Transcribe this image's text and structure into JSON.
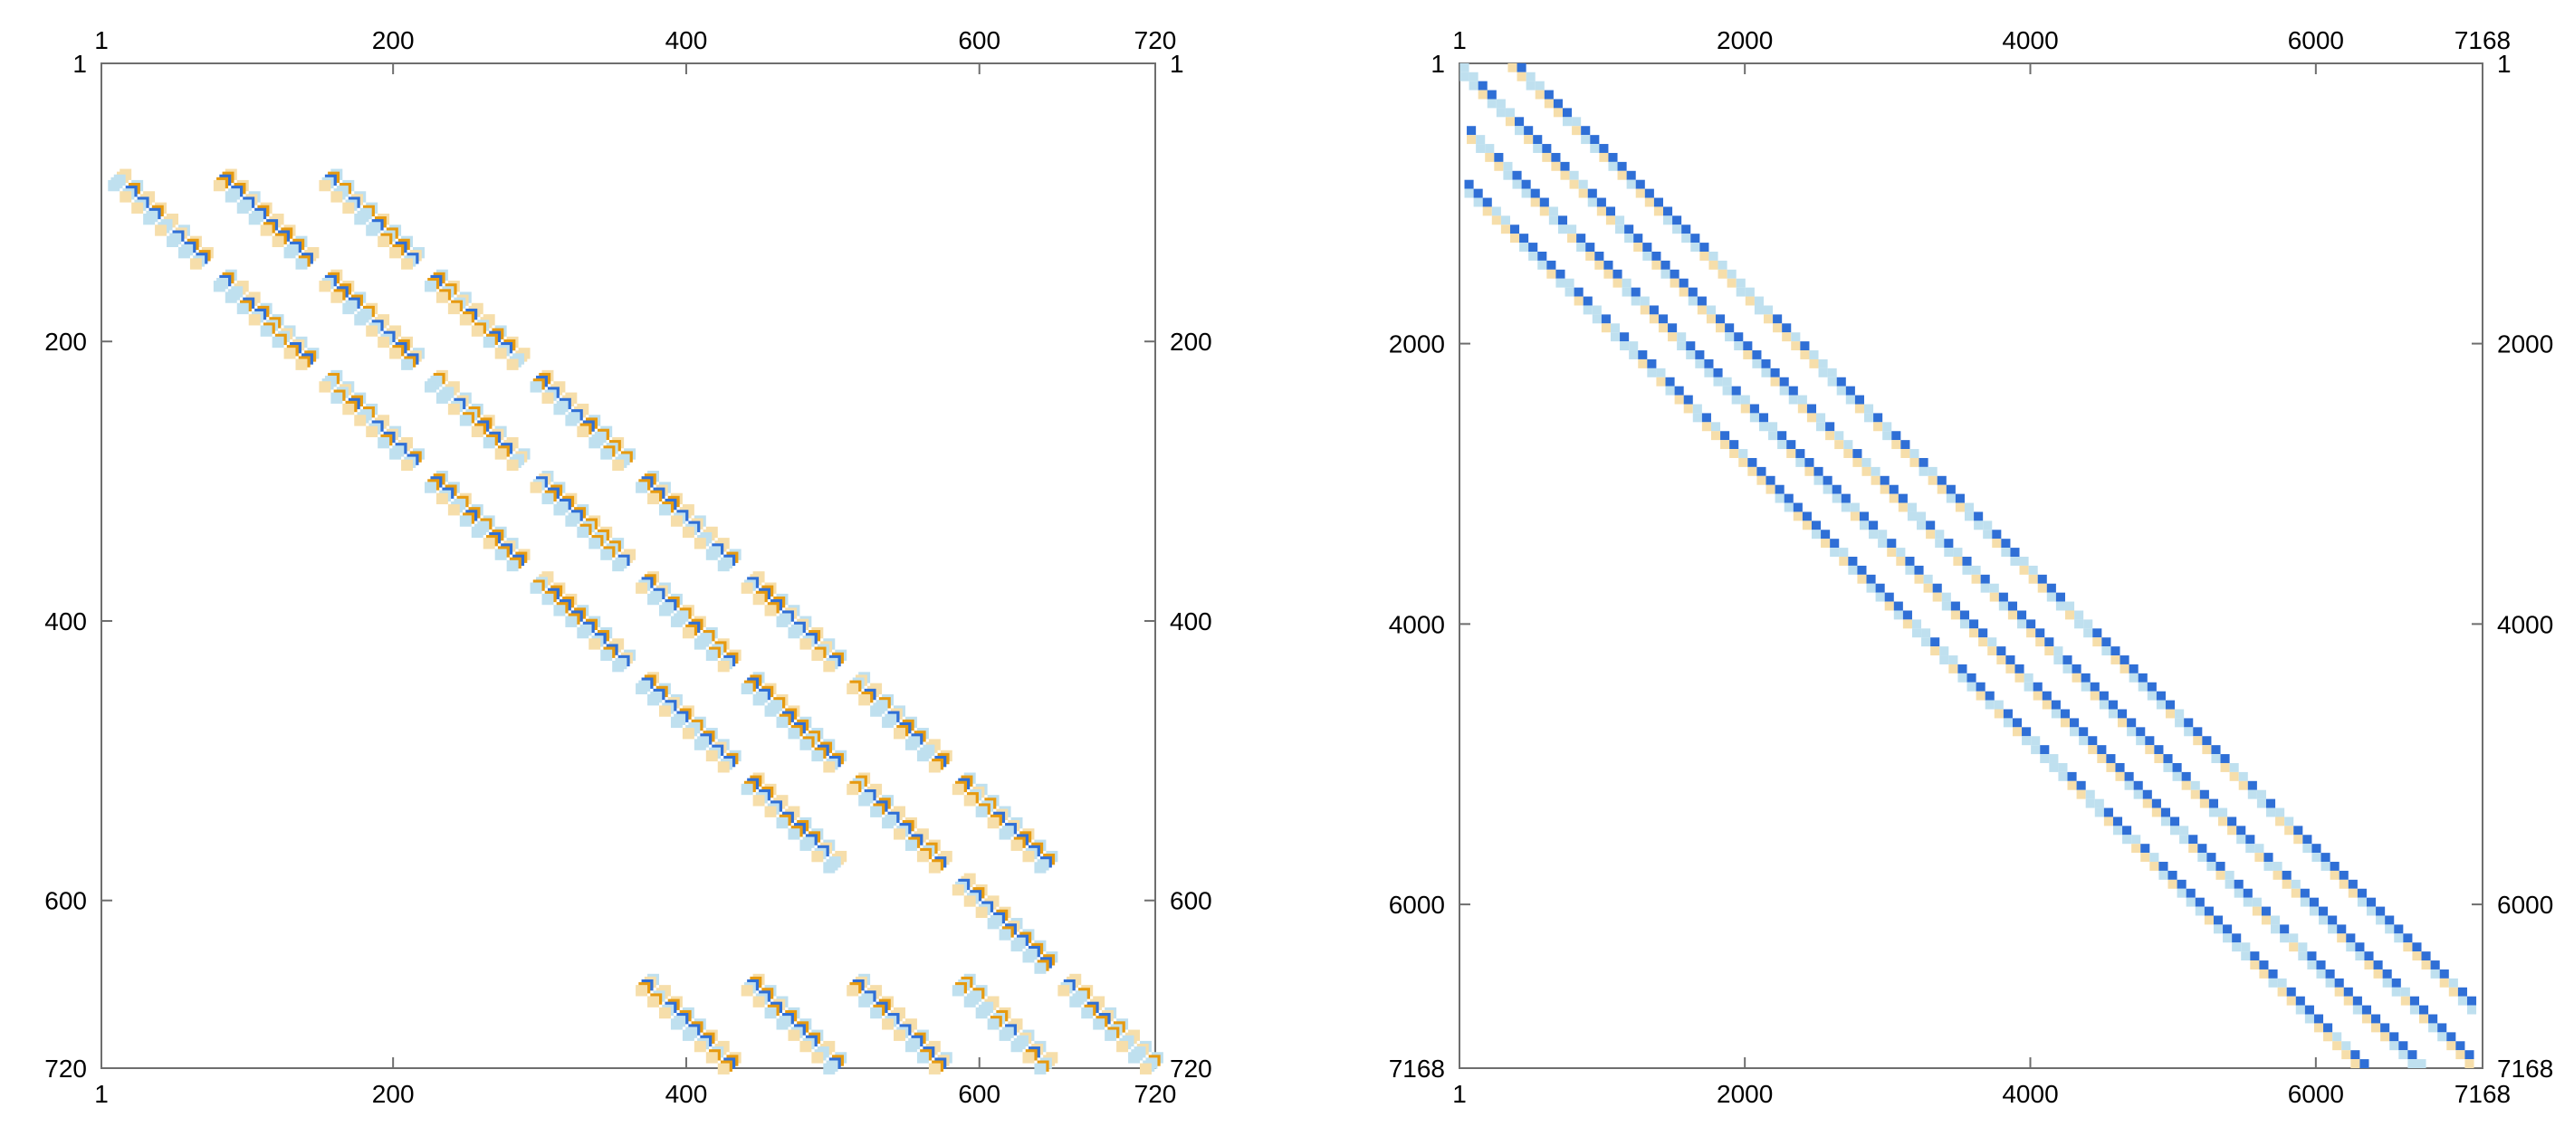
{
  "chart_data": [
    {
      "type": "heatmap",
      "title": "",
      "xlabel": "",
      "ylabel": "",
      "xlim": [
        1,
        720
      ],
      "ylim": [
        720,
        1
      ],
      "matrix_size": 720,
      "block_size": 72,
      "ticks": [
        1,
        200,
        400,
        600,
        720
      ],
      "tick_labels": [
        "1",
        "200",
        "400",
        "600",
        "720"
      ],
      "block_bands": [
        {
          "row_block": 1,
          "col_block": 0
        },
        {
          "row_block": 1,
          "col_block": 1
        },
        {
          "row_block": 1,
          "col_block": 2
        },
        {
          "row_block": 2,
          "col_block": 1
        },
        {
          "row_block": 2,
          "col_block": 2
        },
        {
          "row_block": 2,
          "col_block": 3
        },
        {
          "row_block": 3,
          "col_block": 2
        },
        {
          "row_block": 3,
          "col_block": 3
        },
        {
          "row_block": 3,
          "col_block": 4
        },
        {
          "row_block": 4,
          "col_block": 3
        },
        {
          "row_block": 4,
          "col_block": 4
        },
        {
          "row_block": 4,
          "col_block": 5
        },
        {
          "row_block": 5,
          "col_block": 4
        },
        {
          "row_block": 5,
          "col_block": 5
        },
        {
          "row_block": 5,
          "col_block": 6
        },
        {
          "row_block": 6,
          "col_block": 5
        },
        {
          "row_block": 6,
          "col_block": 6
        },
        {
          "row_block": 6,
          "col_block": 7
        },
        {
          "row_block": 7,
          "col_block": 6
        },
        {
          "row_block": 7,
          "col_block": 7
        },
        {
          "row_block": 7,
          "col_block": 8
        },
        {
          "row_block": 8,
          "col_block": 8
        },
        {
          "row_block": 9,
          "col_block": 5
        },
        {
          "row_block": 9,
          "col_block": 6
        },
        {
          "row_block": 9,
          "col_block": 7
        },
        {
          "row_block": 9,
          "col_block": 8
        },
        {
          "row_block": 9,
          "col_block": 9
        }
      ],
      "colors": {
        "strong_blue": "#2f6fd6",
        "light_blue": "#bfe0ef",
        "strong_orange": "#e69a10",
        "light_orange": "#f6deaa"
      }
    },
    {
      "type": "heatmap",
      "title": "",
      "xlabel": "",
      "ylabel": "",
      "xlim": [
        1,
        7168
      ],
      "ylim": [
        7168,
        1
      ],
      "matrix_size": 7168,
      "ticks": [
        1,
        2000,
        4000,
        6000,
        7168
      ],
      "tick_labels": [
        "1",
        "2000",
        "4000",
        "6000",
        "7168"
      ],
      "diagonal_bands": [
        {
          "offset": -800,
          "start": 1,
          "end": 7168
        },
        {
          "offset": -400,
          "start": 1,
          "end": 7168
        },
        {
          "offset": 0,
          "start": 1,
          "end": 7168
        },
        {
          "offset": 400,
          "start": 1,
          "end": 7168
        }
      ],
      "colors": {
        "strong_blue": "#2f6fd6",
        "light_blue": "#bfe0ef",
        "strong_orange": "#e69a10",
        "light_orange": "#f6deaa"
      }
    }
  ]
}
